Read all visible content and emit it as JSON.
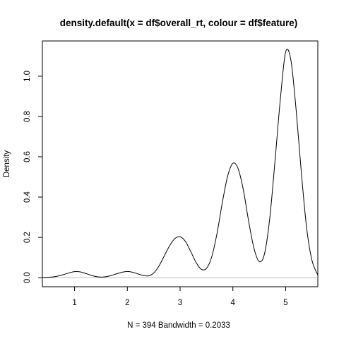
{
  "chart_data": {
    "type": "line",
    "title": "density.default(x = df$overall_rt, colour = df$feature)",
    "xlabel": "N = 394   Bandwidth = 0.2033",
    "ylabel": "Density",
    "xlim": [
      0.39,
      5.61
    ],
    "ylim": [
      -0.045,
      1.175
    ],
    "x_ticks": [
      "1",
      "2",
      "3",
      "4",
      "5"
    ],
    "y_ticks": [
      "0.0",
      "0.2",
      "0.4",
      "0.6",
      "0.8",
      "1.0"
    ],
    "zero_line": true,
    "grid": false,
    "series": [
      {
        "x": [
          0.39,
          0.5,
          0.6,
          0.7,
          0.8,
          0.9,
          1.0,
          1.1,
          1.2,
          1.3,
          1.4,
          1.5,
          1.6,
          1.7,
          1.8,
          1.9,
          2.0,
          2.1,
          2.2,
          2.3,
          2.4,
          2.5,
          2.6,
          2.7,
          2.8,
          2.9,
          3.0,
          3.1,
          3.2,
          3.3,
          3.4,
          3.5,
          3.6,
          3.7,
          3.8,
          3.9,
          4.0,
          4.1,
          4.2,
          4.3,
          4.4,
          4.5,
          4.6,
          4.7,
          4.8,
          4.9,
          5.0,
          5.1,
          5.2,
          5.3,
          5.4,
          5.5,
          5.61
        ],
        "y": [
          0.001,
          0.002,
          0.004,
          0.009,
          0.016,
          0.024,
          0.03,
          0.029,
          0.022,
          0.013,
          0.006,
          0.003,
          0.005,
          0.011,
          0.02,
          0.027,
          0.031,
          0.027,
          0.019,
          0.011,
          0.009,
          0.023,
          0.058,
          0.108,
          0.158,
          0.194,
          0.203,
          0.18,
          0.131,
          0.077,
          0.042,
          0.046,
          0.104,
          0.22,
          0.372,
          0.503,
          0.568,
          0.541,
          0.434,
          0.279,
          0.146,
          0.08,
          0.119,
          0.297,
          0.583,
          0.886,
          1.12,
          1.079,
          0.83,
          0.515,
          0.243,
          0.085,
          0.013
        ]
      }
    ]
  }
}
